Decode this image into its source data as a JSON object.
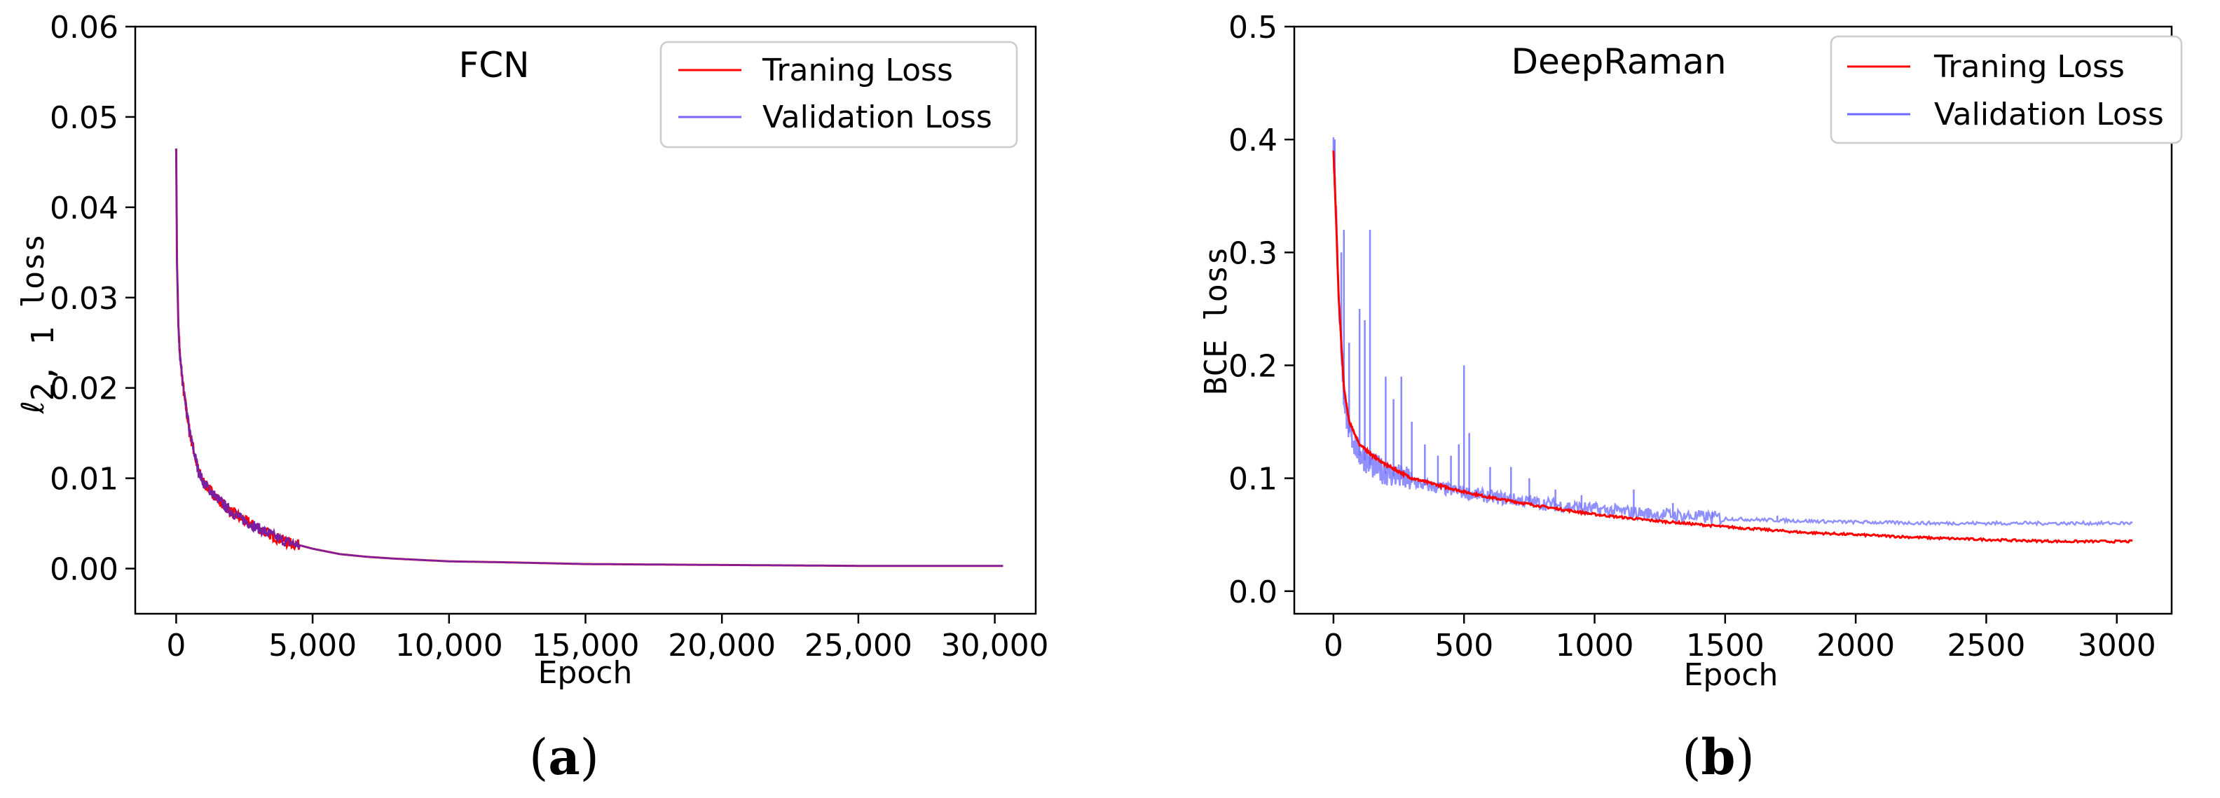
{
  "figure": {
    "panel_a_parts": [
      "(",
      "a",
      ")"
    ],
    "panel_b_parts": [
      "(",
      "b",
      ")"
    ]
  },
  "colors": {
    "training": "#ff0000",
    "validation_a": "#7b61ff",
    "validation_b": "#6b6bff",
    "overlap": "#7b1fa2"
  },
  "chart_data": [
    {
      "type": "line",
      "title": "FCN",
      "xlabel": "Epoch",
      "ylabel_parts": [
        "ℓ",
        "2, 1",
        " loss"
      ],
      "xlim": [
        -1500,
        31500
      ],
      "ylim": [
        -0.005,
        0.06
      ],
      "xticks": [
        0,
        5000,
        10000,
        15000,
        20000,
        25000,
        30000
      ],
      "xtick_labels": [
        "0",
        "5,000",
        "10,000",
        "15,000",
        "20,000",
        "25,000",
        "30,000"
      ],
      "yticks": [
        0.0,
        0.01,
        0.02,
        0.03,
        0.04,
        0.05,
        0.06
      ],
      "ytick_labels": [
        "0.00",
        "0.01",
        "0.02",
        "0.03",
        "0.04",
        "0.05",
        "0.06"
      ],
      "legend": "top-right",
      "series": [
        {
          "name": "Traning Loss",
          "x": [
            0,
            30,
            80,
            150,
            300,
            500,
            800,
            1000,
            1500,
            2000,
            2500,
            3000,
            3500,
            4000,
            5000,
            6000,
            7000,
            8000,
            10000,
            12000,
            15000,
            20000,
            25000,
            30000,
            30300
          ],
          "values": [
            0.0465,
            0.034,
            0.027,
            0.023,
            0.019,
            0.015,
            0.011,
            0.0095,
            0.0078,
            0.0063,
            0.0053,
            0.0045,
            0.0037,
            0.003,
            0.0022,
            0.0016,
            0.0013,
            0.0011,
            0.0008,
            0.0007,
            0.0005,
            0.0004,
            0.0003,
            0.0003,
            0.0003
          ]
        },
        {
          "name": "Validation Loss",
          "x": [
            0,
            30,
            80,
            150,
            300,
            500,
            800,
            1000,
            1500,
            2000,
            2500,
            3000,
            3500,
            4000,
            5000,
            6000,
            7000,
            8000,
            10000,
            12000,
            15000,
            20000,
            25000,
            30000,
            30300
          ],
          "values": [
            0.0465,
            0.034,
            0.027,
            0.023,
            0.019,
            0.015,
            0.011,
            0.0095,
            0.0078,
            0.0063,
            0.0053,
            0.0045,
            0.0037,
            0.003,
            0.0022,
            0.0016,
            0.0013,
            0.0011,
            0.0008,
            0.0007,
            0.0005,
            0.0004,
            0.0003,
            0.0003,
            0.0003
          ]
        }
      ]
    },
    {
      "type": "line",
      "title": "DeepRaman",
      "xlabel": "Epoch",
      "ylabel": "BCE loss",
      "xlim": [
        -150,
        3210
      ],
      "ylim": [
        -0.02,
        0.5
      ],
      "xticks": [
        0,
        500,
        1000,
        1500,
        2000,
        2500,
        3000
      ],
      "xtick_labels": [
        "0",
        "500",
        "1000",
        "1500",
        "2000",
        "2500",
        "3000"
      ],
      "yticks": [
        0.0,
        0.1,
        0.2,
        0.3,
        0.4,
        0.5
      ],
      "ytick_labels": [
        "0.0",
        "0.1",
        "0.2",
        "0.3",
        "0.4",
        "0.5"
      ],
      "legend": "top-right",
      "series": [
        {
          "name": "Traning Loss",
          "x": [
            0,
            10,
            20,
            40,
            60,
            100,
            150,
            200,
            300,
            400,
            500,
            600,
            800,
            1000,
            1200,
            1500,
            1800,
            2000,
            2300,
            2600,
            2800,
            3060
          ],
          "values": [
            0.39,
            0.33,
            0.26,
            0.18,
            0.15,
            0.13,
            0.12,
            0.112,
            0.1,
            0.094,
            0.088,
            0.083,
            0.075,
            0.068,
            0.063,
            0.057,
            0.052,
            0.05,
            0.047,
            0.045,
            0.044,
            0.044
          ]
        },
        {
          "name": "Validation Loss",
          "x": [
            0,
            10,
            20,
            40,
            60,
            100,
            150,
            200,
            300,
            400,
            500,
            600,
            800,
            1000,
            1200,
            1500,
            1800,
            2000,
            2300,
            2600,
            2800,
            3060
          ],
          "values": [
            0.39,
            0.34,
            0.26,
            0.17,
            0.14,
            0.12,
            0.11,
            0.104,
            0.096,
            0.091,
            0.087,
            0.083,
            0.077,
            0.072,
            0.068,
            0.064,
            0.062,
            0.061,
            0.06,
            0.06,
            0.06,
            0.06
          ],
          "spikes": [
            [
              5,
              0.4
            ],
            [
              30,
              0.3
            ],
            [
              40,
              0.32
            ],
            [
              60,
              0.22
            ],
            [
              100,
              0.25
            ],
            [
              120,
              0.24
            ],
            [
              140,
              0.32
            ],
            [
              200,
              0.19
            ],
            [
              230,
              0.17
            ],
            [
              260,
              0.19
            ],
            [
              300,
              0.15
            ],
            [
              350,
              0.13
            ],
            [
              400,
              0.12
            ],
            [
              450,
              0.12
            ],
            [
              480,
              0.13
            ],
            [
              500,
              0.2
            ],
            [
              520,
              0.14
            ],
            [
              600,
              0.11
            ],
            [
              680,
              0.11
            ],
            [
              750,
              0.1
            ],
            [
              850,
              0.09
            ],
            [
              950,
              0.085
            ],
            [
              1150,
              0.09
            ],
            [
              1300,
              0.078
            ],
            [
              1450,
              0.07
            ],
            [
              1700,
              0.067
            ]
          ]
        }
      ]
    }
  ]
}
